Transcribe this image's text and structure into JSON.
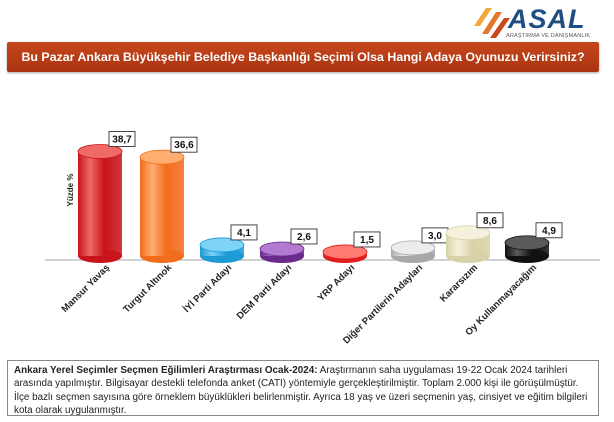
{
  "logo": {
    "name": "ASAL",
    "tagline": "ARAŞTIRMA VE DANIŞMANLIK"
  },
  "header": {
    "title": "Bu Pazar Ankara Büyükşehir Belediye Başkanlığı Seçimi Olsa Hangi Adaya Oyunuzu Verirsiniz?"
  },
  "chart_data": {
    "type": "bar",
    "ylabel": "Yüzde %",
    "ylim": [
      0,
      40
    ],
    "grid": false,
    "categories": [
      "Mansur Yavaş",
      "Turgut Altınok",
      "İYİ Parti Adayı",
      "DEM Parti Adayı",
      "YRP Adayı",
      "Diğer Partilerin Adayları",
      "Kararsızım",
      "Oy Kullanmayacağım"
    ],
    "values": [
      38.7,
      36.6,
      4.1,
      2.6,
      1.5,
      3.0,
      8.6,
      4.9
    ],
    "labels": [
      "38,7",
      "36,6",
      "4,1",
      "2,6",
      "1,5",
      "3,0",
      "8,6",
      "4,9"
    ],
    "colors": [
      "#c8141a",
      "#f26c1c",
      "#1e9ad6",
      "#6a2a8c",
      "#e01e1e",
      "#a8a8a8",
      "#d8d2a8",
      "#111111"
    ],
    "lights": [
      "#ef6a66",
      "#ffae72",
      "#7fd3f7",
      "#b27ad0",
      "#ff7a72",
      "#ececec",
      "#f5f1dc",
      "#5a5a5a"
    ]
  },
  "footnote": {
    "heading": "Ankara Yerel Seçimler Seçmen Eğilimleri Araştırması Ocak-2024:",
    "body": " Araştırmanın saha uygulaması 19-22 Ocak 2024 tarihleri arasında yapılmıştır. Bilgisayar destekli telefonda anket (CATI) yöntemiyle gerçekleştirilmiştir. Toplam 2.000 kişi ile görüşülmüştür. İlçe bazlı seçmen sayısına göre örneklem büyüklükleri belirlenmiştir. Ayrıca 18 yaş ve üzeri seçmenin yaş, cinsiyet ve eğitim bilgileri kota olarak uygulanmıştır."
  }
}
